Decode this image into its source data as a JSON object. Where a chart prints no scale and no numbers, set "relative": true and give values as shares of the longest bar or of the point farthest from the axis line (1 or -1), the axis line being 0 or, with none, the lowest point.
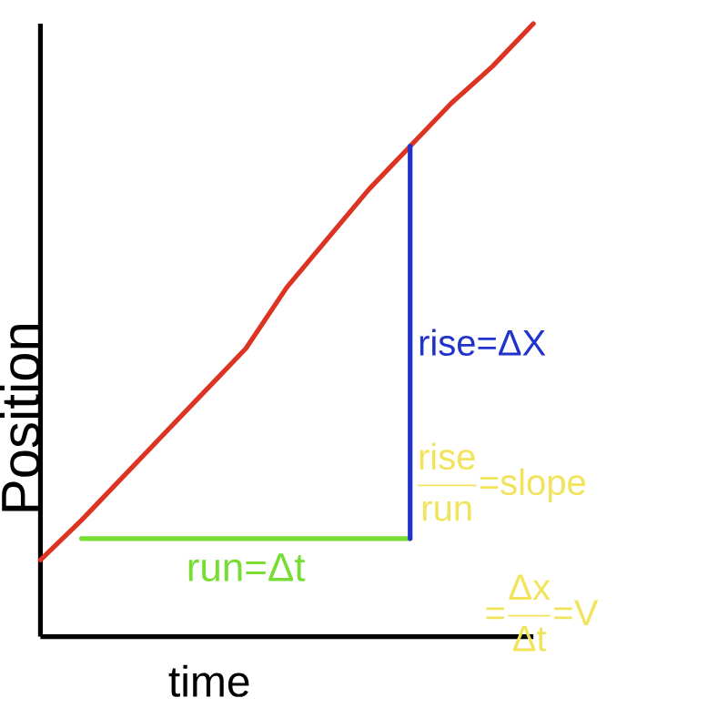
{
  "chart_data": {
    "type": "line",
    "xlabel": "time",
    "ylabel": "Position",
    "relative": true,
    "categories": [
      null,
      null,
      null,
      null,
      null,
      null,
      null,
      null,
      null,
      null,
      null,
      null,
      null
    ],
    "series": [
      {
        "color": "#dd3322",
        "values": [
          0.125,
          0.19,
          0.26,
          0.33,
          0.4,
          0.47,
          0.57,
          0.65,
          0.73,
          0.8,
          0.87,
          0.93,
          1
        ]
      },
      {
        "name": "run=Δt",
        "color": "#77dd33",
        "values": [
          null,
          0.16,
          0.16,
          0.16,
          0.16,
          0.16,
          0.16,
          0.16,
          0.16,
          0.16,
          null,
          null,
          null
        ]
      }
    ],
    "annotations": [
      "\\text{rise=ΔX}",
      "\\frac{\\text{rise}}{\\text{run}}\\text{=slope}",
      "\\text{=}\\frac{\\text{Δx}}{\\text{Δt}}\\text{=V}"
    ]
  }
}
